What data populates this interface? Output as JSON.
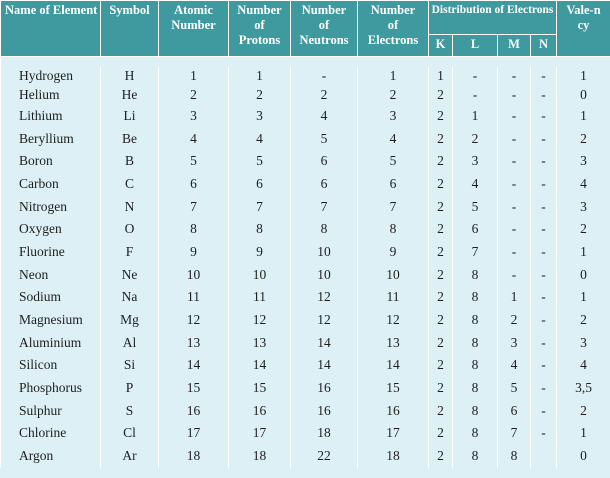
{
  "header": {
    "columns": [
      "Name of Element",
      "Symbol",
      "Atomic Number",
      "Number of Protons",
      "Number of Neutrons",
      "Number of Electrons",
      "Distribution of Electrons",
      "Vale-ncy"
    ],
    "shells": [
      "K",
      "L",
      "M",
      "N"
    ]
  },
  "table": {
    "rows": [
      [
        "Hydrogen",
        "H",
        "1",
        "1",
        "-",
        "1",
        "1",
        "-",
        "-",
        "-",
        "1"
      ],
      [
        "Helium",
        "He",
        "2",
        "2",
        "2",
        "2",
        "2",
        "-",
        "-",
        "-",
        "0"
      ],
      [
        "Lithium",
        "Li",
        "3",
        "3",
        "4",
        "3",
        "2",
        "1",
        "-",
        "-",
        "1"
      ],
      [
        "Beryllium",
        "Be",
        "4",
        "4",
        "5",
        "4",
        "2",
        "2",
        "-",
        "-",
        "2"
      ],
      [
        "Boron",
        "B",
        "5",
        "5",
        "6",
        "5",
        "2",
        "3",
        "-",
        "-",
        "3"
      ],
      [
        "Carbon",
        "C",
        "6",
        "6",
        "6",
        "6",
        "2",
        "4",
        "-",
        "-",
        "4"
      ],
      [
        "Nitrogen",
        "N",
        "7",
        "7",
        "7",
        "7",
        "2",
        "5",
        "-",
        "-",
        "3"
      ],
      [
        "Oxygen",
        "O",
        "8",
        "8",
        "8",
        "8",
        "2",
        "6",
        "-",
        "-",
        "2"
      ],
      [
        "Fluorine",
        "F",
        "9",
        "9",
        "10",
        "9",
        "2",
        "7",
        "-",
        "-",
        "1"
      ],
      [
        "Neon",
        "Ne",
        "10",
        "10",
        "10",
        "10",
        "2",
        "8",
        "-",
        "-",
        "0"
      ],
      [
        "Sodium",
        "Na",
        "11",
        "11",
        "12",
        "11",
        "2",
        "8",
        "1",
        "-",
        "1"
      ],
      [
        "Magnesium",
        "Mg",
        "12",
        "12",
        "12",
        "12",
        "2",
        "8",
        "2",
        "-",
        "2"
      ],
      [
        "Aluminium",
        "Al",
        "13",
        "13",
        "14",
        "13",
        "2",
        "8",
        "3",
        "-",
        "3"
      ],
      [
        "Silicon",
        "Si",
        "14",
        "14",
        "14",
        "14",
        "2",
        "8",
        "4",
        "-",
        "4"
      ],
      [
        "Phosphorus",
        "P",
        "15",
        "15",
        "16",
        "15",
        "2",
        "8",
        "5",
        "-",
        "3,5"
      ],
      [
        "Sulphur",
        "S",
        "16",
        "16",
        "16",
        "16",
        "2",
        "8",
        "6",
        "-",
        "2"
      ],
      [
        "Chlorine",
        "Cl",
        "17",
        "17",
        "18",
        "17",
        "2",
        "8",
        "7",
        "-",
        "1"
      ],
      [
        "Argon",
        "Ar",
        "18",
        "18",
        "22",
        "18",
        "2",
        "8",
        "8",
        "",
        "0"
      ]
    ]
  }
}
